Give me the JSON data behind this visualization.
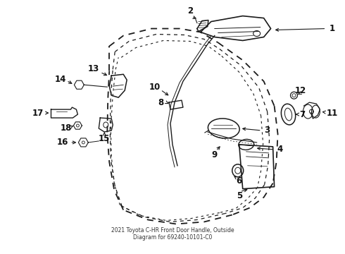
{
  "title": "2021 Toyota C-HR Front Door Handle, Outside\nDiagram for 69240-10101-C0",
  "background_color": "#ffffff",
  "line_color": "#1a1a1a",
  "label_color": "#111111",
  "fig_width": 4.9,
  "fig_height": 3.6,
  "dpi": 100
}
